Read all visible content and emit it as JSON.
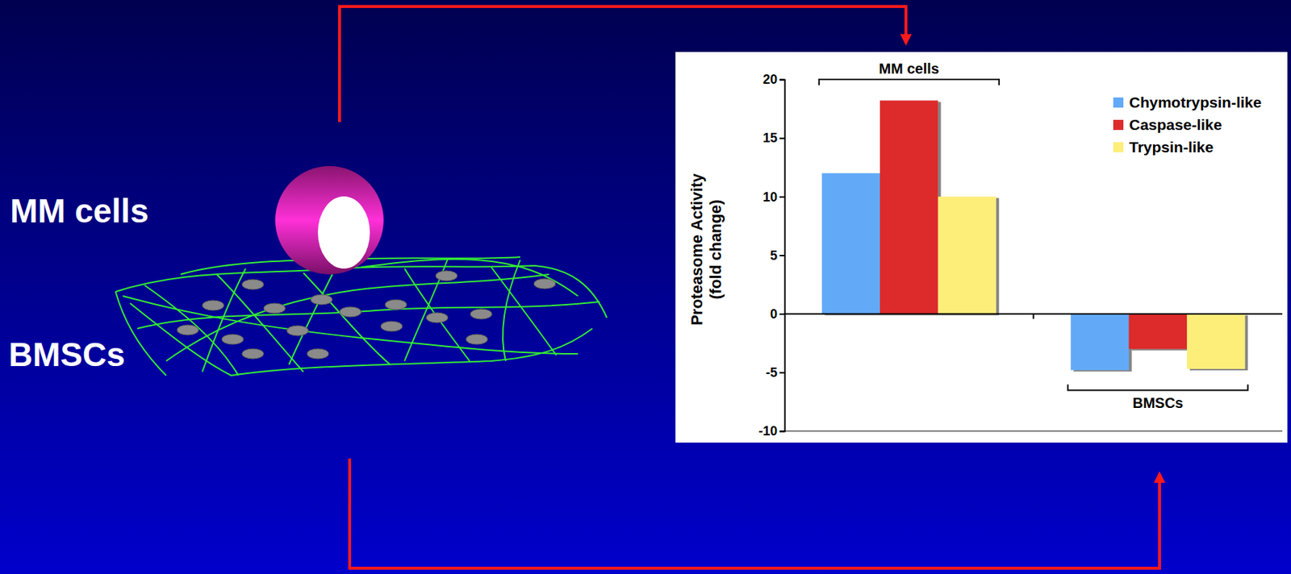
{
  "diagram": {
    "labels": [
      "MM cells",
      "BMSCs"
    ]
  },
  "chart_data": {
    "type": "bar",
    "categories": [
      "MM cells",
      "BMSCs"
    ],
    "ylabel": "Proteasome Activity (fold change)",
    "ylim": [
      -10,
      20
    ],
    "yticks": [
      -10,
      -5,
      0,
      5,
      10,
      15,
      20
    ],
    "legend": "upper-right",
    "series": [
      {
        "name": "Chymotrypsin-like",
        "color": "#62aaf8",
        "values": [
          12,
          -4.8
        ]
      },
      {
        "name": "Caspase-like",
        "color": "#dd2c2c",
        "values": [
          18.2,
          -3
        ]
      },
      {
        "name": "Trypsin-like",
        "color": "#fdee7a",
        "values": [
          10,
          -4.7
        ]
      }
    ]
  }
}
